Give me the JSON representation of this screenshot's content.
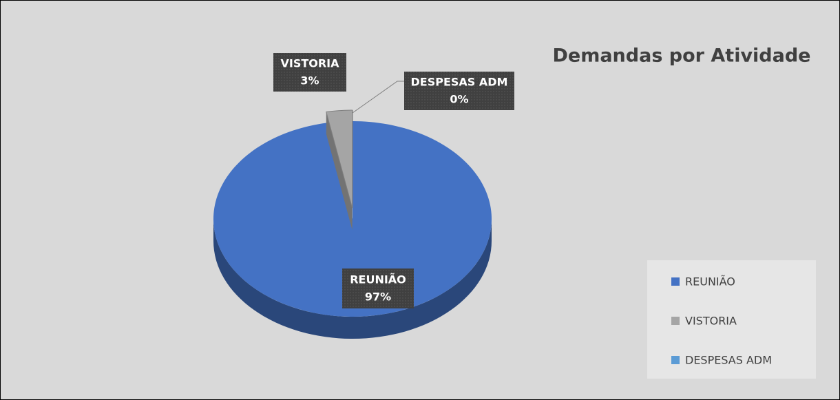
{
  "chart_data": {
    "type": "pie",
    "title": "Demandas por Atividade",
    "categories": [
      "REUNIÃO",
      "VISTORIA",
      "DESPESAS ADM"
    ],
    "values": [
      97,
      3,
      0
    ],
    "value_labels": [
      "97%",
      "3%",
      "0%"
    ],
    "colors": [
      "#4472c4",
      "#a5a5a5",
      "#5b9bd5"
    ]
  }
}
